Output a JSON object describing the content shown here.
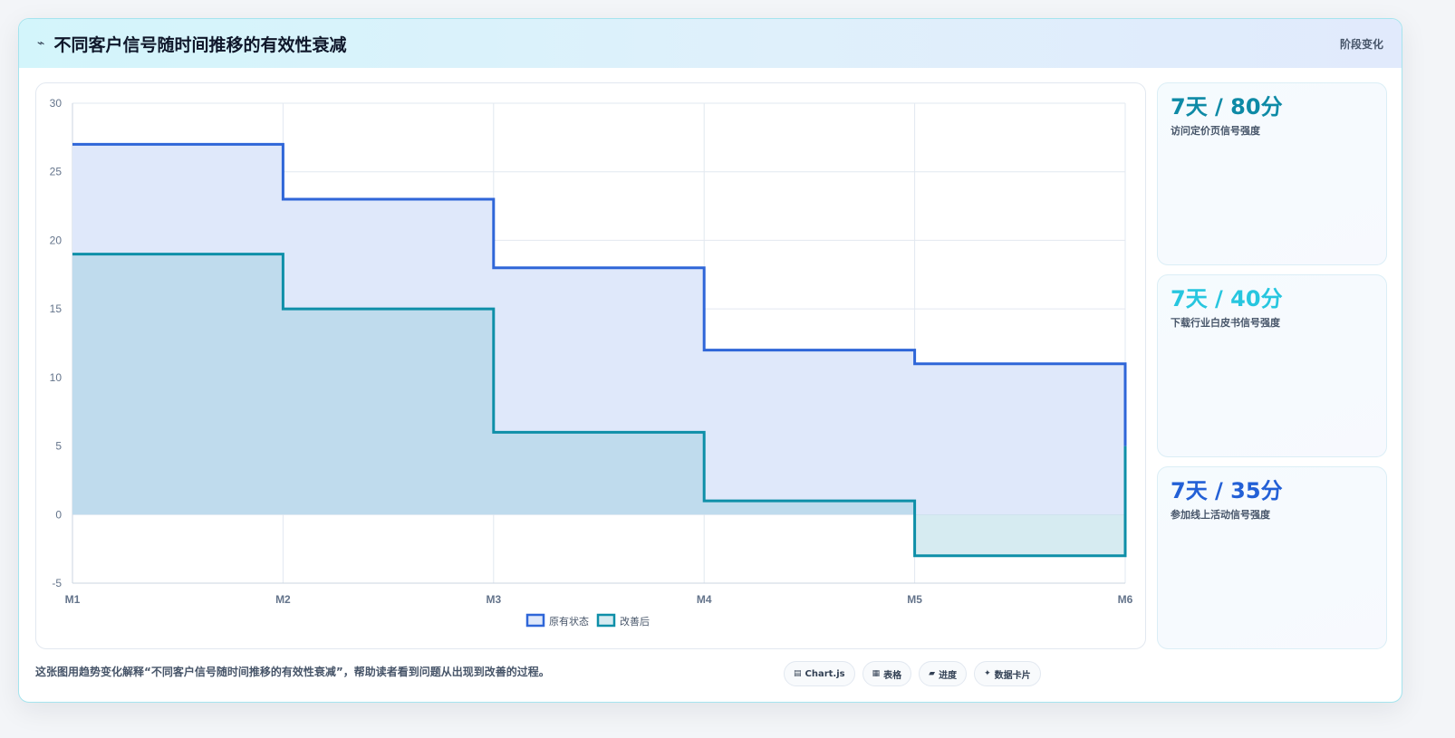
{
  "header": {
    "icon": "signal-decay-icon",
    "icon_glyph": "⌁",
    "title": "不同客户信号随时间推移的有效性衰减",
    "tag": "阶段变化"
  },
  "chart_data": {
    "type": "area",
    "stepped": true,
    "categories": [
      "M1",
      "M2",
      "M3",
      "M4",
      "M5",
      "M6"
    ],
    "ylim": [
      -5,
      30
    ],
    "yticks": [
      30,
      25,
      20,
      15,
      10,
      5,
      0,
      -5
    ],
    "grid": true,
    "legend_position": "bottom",
    "series": [
      {
        "name": "原有状态",
        "values": [
          27,
          23,
          18,
          12,
          11,
          5
        ],
        "color": "#2f66d8",
        "fill": "#dfe8fa"
      },
      {
        "name": "改善后",
        "values": [
          19,
          15,
          6,
          1,
          -3,
          5
        ],
        "color": "#0e8fa8",
        "fill": "rgba(120,190,210,0.30)"
      }
    ]
  },
  "stats": [
    {
      "value": "7天 / 80分",
      "label": "访问定价页信号强度",
      "color": "#0e8aa6"
    },
    {
      "value": "7天 / 40分",
      "label": "下载行业白皮书信号强度",
      "color": "#27c6df"
    },
    {
      "value": "7天 / 35分",
      "label": "参加线上活动信号强度",
      "color": "#2360d6"
    }
  ],
  "caption": "这张图用趋势变化解释“不同客户信号随时间推移的有效性衰减”，帮助读者看到问题从出现到改善的过程。",
  "chips": [
    {
      "icon": "chart-icon",
      "glyph": "▤",
      "label": "Chart.js"
    },
    {
      "icon": "table-icon",
      "glyph": "▦",
      "label": "表格"
    },
    {
      "icon": "progress-icon",
      "glyph": "▰",
      "label": "进度"
    },
    {
      "icon": "sparkle-icon",
      "glyph": "✦",
      "label": "数据卡片"
    }
  ]
}
